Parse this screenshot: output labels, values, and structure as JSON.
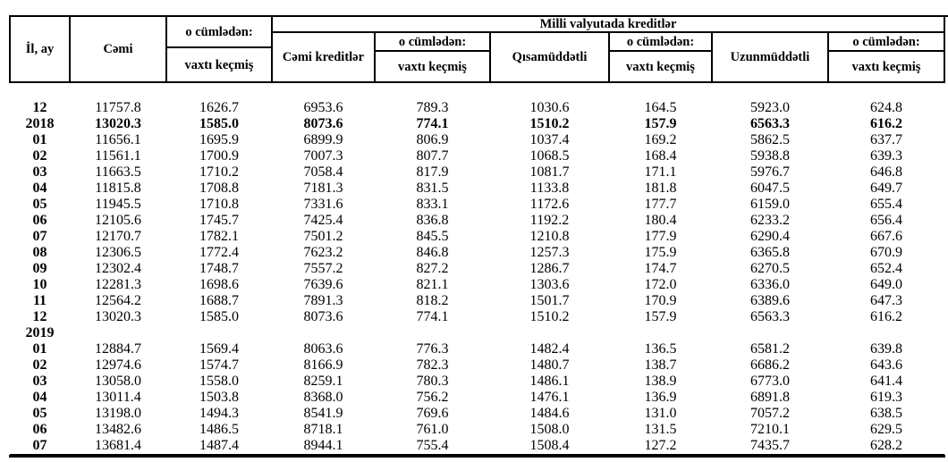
{
  "colors": {
    "text": "#000000",
    "background": "#ffffff",
    "border": "#000000"
  },
  "table": {
    "header": {
      "period_col": "İl, ay",
      "total_col": "Cəmi",
      "including": "o cümlədən:",
      "overdue": "vaxtı keçmiş",
      "national_currency_group": "Milli valyutada  kreditlər",
      "total_credits_col": "Cəmi kreditlər",
      "short_term_col": "Qısamüddətli",
      "long_term_col": "Uzunmüddətli"
    },
    "rows": [
      {
        "label": "12",
        "bold": false,
        "values": [
          "11757.8",
          "1626.7",
          "6953.6",
          "789.3",
          "1030.6",
          "164.5",
          "5923.0",
          "624.8"
        ]
      },
      {
        "label": "2018",
        "bold": true,
        "values": [
          "13020.3",
          "1585.0",
          "8073.6",
          "774.1",
          "1510.2",
          "157.9",
          "6563.3",
          "616.2"
        ]
      },
      {
        "label": "01",
        "bold": false,
        "values": [
          "11656.1",
          "1695.9",
          "6899.9",
          "806.9",
          "1037.4",
          "169.2",
          "5862.5",
          "637.7"
        ]
      },
      {
        "label": "02",
        "bold": false,
        "values": [
          "11561.1",
          "1700.9",
          "7007.3",
          "807.7",
          "1068.5",
          "168.4",
          "5938.8",
          "639.3"
        ]
      },
      {
        "label": "03",
        "bold": false,
        "values": [
          "11663.5",
          "1710.2",
          "7058.4",
          "817.9",
          "1081.7",
          "171.1",
          "5976.7",
          "646.8"
        ]
      },
      {
        "label": "04",
        "bold": false,
        "values": [
          "11815.8",
          "1708.8",
          "7181.3",
          "831.5",
          "1133.8",
          "181.8",
          "6047.5",
          "649.7"
        ]
      },
      {
        "label": "05",
        "bold": false,
        "values": [
          "11945.5",
          "1710.8",
          "7331.6",
          "833.1",
          "1172.6",
          "177.7",
          "6159.0",
          "655.4"
        ]
      },
      {
        "label": "06",
        "bold": false,
        "values": [
          "12105.6",
          "1745.7",
          "7425.4",
          "836.8",
          "1192.2",
          "180.4",
          "6233.2",
          "656.4"
        ]
      },
      {
        "label": "07",
        "bold": false,
        "values": [
          "12170.7",
          "1782.1",
          "7501.2",
          "845.5",
          "1210.8",
          "177.9",
          "6290.4",
          "667.6"
        ]
      },
      {
        "label": "08",
        "bold": false,
        "values": [
          "12306.5",
          "1772.4",
          "7623.2",
          "846.8",
          "1257.3",
          "175.9",
          "6365.8",
          "670.9"
        ]
      },
      {
        "label": "09",
        "bold": false,
        "values": [
          "12302.4",
          "1748.7",
          "7557.2",
          "827.2",
          "1286.7",
          "174.7",
          "6270.5",
          "652.4"
        ]
      },
      {
        "label": "10",
        "bold": false,
        "values": [
          "12281.3",
          "1698.6",
          "7639.6",
          "821.1",
          "1303.6",
          "172.0",
          "6336.0",
          "649.0"
        ]
      },
      {
        "label": "11",
        "bold": false,
        "values": [
          "12564.2",
          "1688.7",
          "7891.3",
          "818.2",
          "1501.7",
          "170.9",
          "6389.6",
          "647.3"
        ]
      },
      {
        "label": "12",
        "bold": false,
        "values": [
          "13020.3",
          "1585.0",
          "8073.6",
          "774.1",
          "1510.2",
          "157.9",
          "6563.3",
          "616.2"
        ]
      },
      {
        "label": "2019",
        "bold": true,
        "values": [
          "",
          "",
          "",
          "",
          "",
          "",
          "",
          ""
        ]
      },
      {
        "label": "01",
        "bold": false,
        "values": [
          "12884.7",
          "1569.4",
          "8063.6",
          "776.3",
          "1482.4",
          "136.5",
          "6581.2",
          "639.8"
        ]
      },
      {
        "label": "02",
        "bold": false,
        "values": [
          "12974.6",
          "1574.7",
          "8166.9",
          "782.3",
          "1480.7",
          "138.7",
          "6686.2",
          "643.6"
        ]
      },
      {
        "label": "03",
        "bold": false,
        "values": [
          "13058.0",
          "1558.0",
          "8259.1",
          "780.3",
          "1486.1",
          "138.9",
          "6773.0",
          "641.4"
        ]
      },
      {
        "label": "04",
        "bold": false,
        "values": [
          "13011.4",
          "1503.8",
          "8368.0",
          "756.2",
          "1476.1",
          "136.9",
          "6891.8",
          "619.3"
        ]
      },
      {
        "label": "05",
        "bold": false,
        "values": [
          "13198.0",
          "1494.3",
          "8541.9",
          "769.6",
          "1484.6",
          "131.0",
          "7057.2",
          "638.5"
        ]
      },
      {
        "label": "06",
        "bold": false,
        "values": [
          "13482.6",
          "1486.5",
          "8718.1",
          "761.0",
          "1508.0",
          "131.5",
          "7210.1",
          "629.5"
        ]
      },
      {
        "label": "07",
        "bold": false,
        "values": [
          "13681.4",
          "1487.4",
          "8944.1",
          "755.4",
          "1508.4",
          "127.2",
          "7435.7",
          "628.2"
        ]
      }
    ]
  }
}
